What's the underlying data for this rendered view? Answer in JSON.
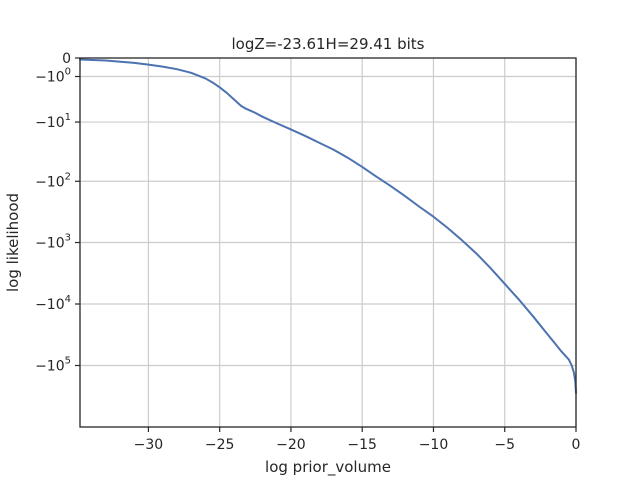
{
  "chart_data": {
    "type": "line",
    "title": "logZ=-23.61H=29.41 bits",
    "xlabel": "log prior_volume",
    "ylabel": "log likelihood",
    "xlim": [
      -34.8,
      0
    ],
    "yscale": "symlog",
    "symlog_linthresh": 1,
    "ylim": [
      -1000000,
      0
    ],
    "grid": true,
    "x_ticks": [
      {
        "value": -30,
        "label": "−30"
      },
      {
        "value": -25,
        "label": "−25"
      },
      {
        "value": -20,
        "label": "−20"
      },
      {
        "value": -15,
        "label": "−15"
      },
      {
        "value": -10,
        "label": "−10"
      },
      {
        "value": -5,
        "label": "−5"
      },
      {
        "value": 0,
        "label": "0"
      }
    ],
    "y_ticks": [
      {
        "value": 0,
        "base": "0",
        "exp": ""
      },
      {
        "value": -1,
        "base": "−10",
        "exp": "0"
      },
      {
        "value": -10,
        "base": "−10",
        "exp": "1"
      },
      {
        "value": -100,
        "base": "−10",
        "exp": "2"
      },
      {
        "value": -1000,
        "base": "−10",
        "exp": "3"
      },
      {
        "value": -10000,
        "base": "−10",
        "exp": "4"
      },
      {
        "value": -100000,
        "base": "−10",
        "exp": "5"
      }
    ],
    "series": [
      {
        "color": "#4c72b0",
        "x": [
          -34.8,
          -33,
          -31,
          -30,
          -29,
          -28,
          -27,
          -26,
          -25.5,
          -25,
          -24.5,
          -24,
          -23.5,
          -23.2,
          -22.5,
          -22,
          -21,
          -20,
          -19,
          -18,
          -17,
          -16,
          -15,
          -14,
          -13,
          -12,
          -11,
          -10,
          -9,
          -8,
          -7,
          -6,
          -5,
          -4,
          -3,
          -2,
          -1.5,
          -1,
          -0.5,
          -0.3,
          -0.15,
          -0.05,
          0
        ],
        "y": [
          -0.06,
          -0.1,
          -0.2,
          -0.28,
          -0.38,
          -0.52,
          -0.74,
          -1.15,
          -1.5,
          -2.0,
          -2.7,
          -3.7,
          -5.0,
          -5.6,
          -6.8,
          -8.0,
          -10.5,
          -13.5,
          -17.5,
          -23,
          -30,
          -41,
          -58,
          -84,
          -120,
          -175,
          -260,
          -380,
          -580,
          -920,
          -1500,
          -2600,
          -4700,
          -8500,
          -16000,
          -31000,
          -43000,
          -60000,
          -80000,
          -100000,
          -130000,
          -180000,
          -280000
        ]
      }
    ]
  }
}
